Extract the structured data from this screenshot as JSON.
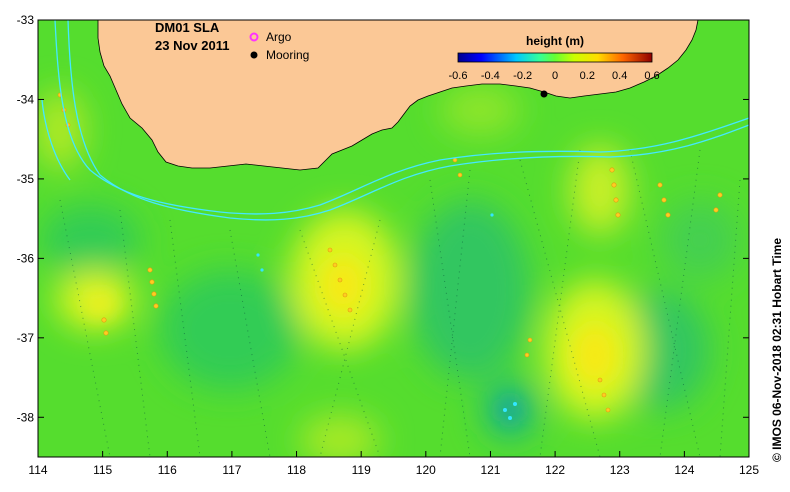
{
  "map": {
    "title": "DM01 SLA",
    "date": "23 Nov 2011",
    "credit": "© IMOS 06-Nov-2018 02:31 Hobart Time",
    "lon_range": [
      114,
      125
    ],
    "lat_range": [
      -38.5,
      -33
    ],
    "x_ticks": [
      "114",
      "115",
      "116",
      "117",
      "118",
      "119",
      "120",
      "121",
      "122",
      "123",
      "124",
      "125"
    ],
    "y_ticks": [
      "-33",
      "-34",
      "-35",
      "-36",
      "-37",
      "-38"
    ],
    "land_color": "#fbc896",
    "legend": {
      "argo_label": "Argo",
      "argo_color": "#ff33ff",
      "mooring_label": "Mooring",
      "mooring_color": "#000000"
    },
    "colorbar": {
      "title": "height (m)",
      "range": [
        -0.6,
        0.6
      ],
      "ticks": [
        "-0.6",
        "-0.4",
        "-0.2",
        "0",
        "0.2",
        "0.4",
        "0.6"
      ]
    }
  }
}
